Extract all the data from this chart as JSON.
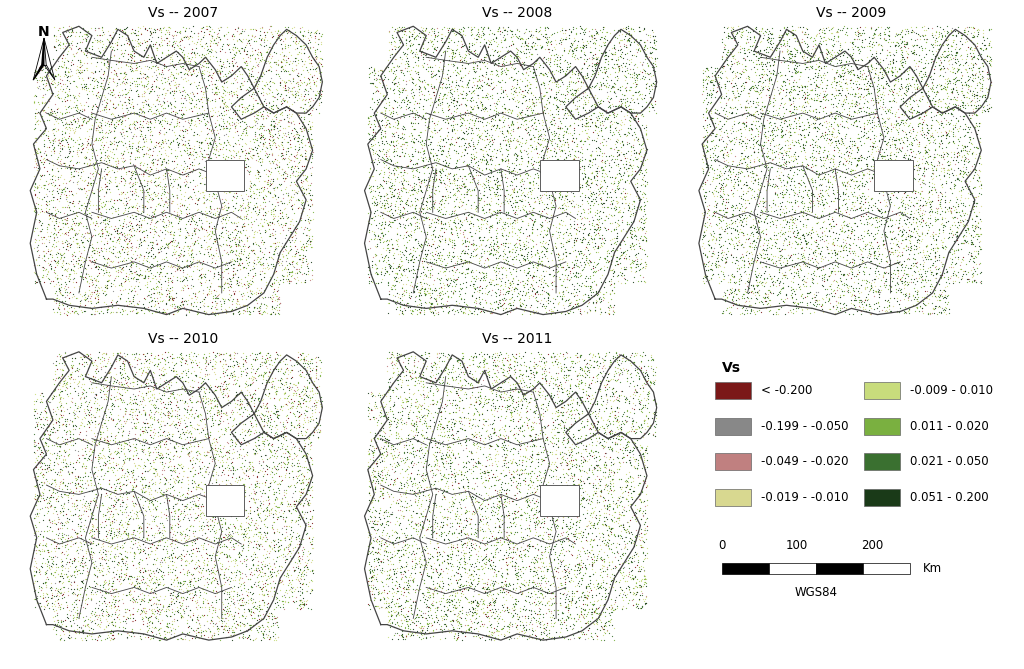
{
  "title_2007": "Vs -- 2007",
  "title_2008": "Vs -- 2008",
  "title_2009": "Vs -- 2009",
  "title_2010": "Vs -- 2010",
  "title_2011": "Vs -- 2011",
  "legend_title": "Vs",
  "legend_items_left": [
    {
      "color": "#7B1818",
      "label": "< -0.200"
    },
    {
      "color": "#888888",
      "label": "-0.199 - -0.050"
    },
    {
      "color": "#C08080",
      "label": "-0.049 - -0.020"
    },
    {
      "color": "#D8D890",
      "label": "-0.019 - -0.010"
    }
  ],
  "legend_items_right": [
    {
      "color": "#C8DC7C",
      "label": "-0.009 - 0.010"
    },
    {
      "color": "#7AB040",
      "label": "0.011 - 0.020"
    },
    {
      "color": "#3A7030",
      "label": "0.021 - 0.050"
    },
    {
      "color": "#1A3A18",
      "label": "0.051 - 0.200"
    }
  ],
  "scale_label_0": "0",
  "scale_label_100": "100",
  "scale_label_200": "200",
  "scale_unit": "Km",
  "projection": "WGS84",
  "bg_color": "#FFFFFF",
  "map_bg": "#FFFFFF",
  "border_color": "#444444",
  "title_fontsize": 10,
  "legend_fontsize": 8.5,
  "legend_title_fontsize": 10
}
